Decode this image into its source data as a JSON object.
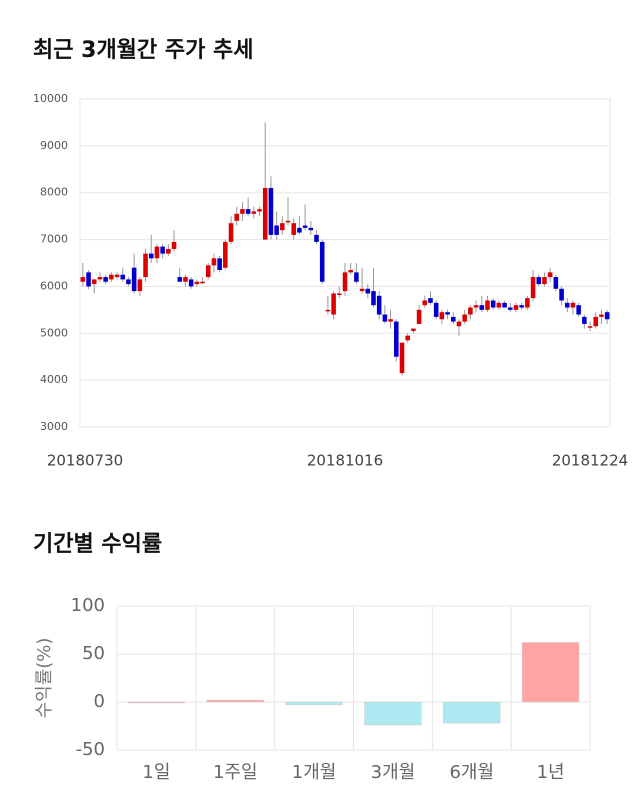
{
  "chart_data": [
    {
      "type": "candlestick",
      "title": "최근 3개월간 주가 추세",
      "categories": [
        "20180730",
        null,
        null,
        null,
        null,
        null,
        null,
        null,
        null,
        null,
        null,
        null,
        null,
        null,
        null,
        null,
        null,
        null,
        null,
        null,
        null,
        null,
        null,
        null,
        null,
        null,
        null,
        null,
        null,
        null,
        null,
        null,
        null,
        null,
        null,
        null,
        null,
        null,
        null,
        null,
        null,
        null,
        null,
        null,
        null,
        null,
        "20181016",
        null,
        null,
        null,
        null,
        null,
        null,
        null,
        null,
        null,
        null,
        null,
        null,
        null,
        null,
        null,
        null,
        null,
        null,
        null,
        null,
        null,
        null,
        null,
        null,
        null,
        null,
        null,
        null,
        null,
        null,
        null,
        null,
        null,
        null,
        null,
        null,
        null,
        null,
        null,
        null,
        null,
        null,
        null,
        null,
        null,
        "20181224"
      ],
      "open": [
        6100,
        6300,
        6050,
        6150,
        6200,
        6150,
        6200,
        6250,
        6150,
        6400,
        5900,
        6200,
        6700,
        6600,
        6850,
        6700,
        6800,
        6200,
        6100,
        6150,
        6050,
        6100,
        6200,
        6450,
        6600,
        6400,
        6950,
        7400,
        7550,
        7650,
        7550,
        7600,
        7000,
        8100,
        7300,
        7200,
        7400,
        7100,
        7250,
        7300,
        7250,
        7100,
        6950,
        5500,
        5400,
        5850,
        5900,
        6300,
        6300,
        5900,
        5950,
        5900,
        5800,
        5400,
        5250,
        5250,
        4150,
        4850,
        5050,
        5200,
        5600,
        5750,
        5650,
        5300,
        5450,
        5350,
        5150,
        5250,
        5400,
        5550,
        5600,
        5500,
        5700,
        5550,
        5650,
        5550,
        5500,
        5600,
        5550,
        5750,
        6200,
        6050,
        6200,
        6200,
        5950,
        5650,
        5550,
        5600,
        5350,
        5150,
        5150,
        5350,
        5450
      ],
      "high": [
        6500,
        6350,
        6150,
        6300,
        6250,
        6300,
        6300,
        6400,
        6200,
        6700,
        6200,
        6800,
        7100,
        6900,
        6900,
        6900,
        7200,
        6400,
        6250,
        6200,
        6150,
        6200,
        6500,
        6700,
        6650,
        7000,
        7500,
        7700,
        7800,
        7900,
        7700,
        7700,
        9500,
        8350,
        7600,
        7500,
        7900,
        7450,
        7500,
        7750,
        7400,
        7200,
        7000,
        5800,
        5900,
        6000,
        6500,
        6500,
        6500,
        6400,
        6050,
        6400,
        5900,
        5600,
        5500,
        5300,
        4800,
        5000,
        5100,
        5600,
        5800,
        5900,
        5700,
        5500,
        5500,
        5450,
        5300,
        5500,
        5600,
        5700,
        5800,
        5800,
        5750,
        5700,
        5700,
        5650,
        5650,
        5650,
        5800,
        6350,
        6250,
        6300,
        6400,
        6250,
        6000,
        5750,
        5700,
        5650,
        5400,
        5250,
        5450,
        5500,
        5500
      ],
      "low": [
        6000,
        5950,
        5850,
        6100,
        6050,
        6100,
        6150,
        6100,
        6000,
        5850,
        5800,
        6100,
        6500,
        6500,
        6600,
        6650,
        6750,
        6100,
        6000,
        5950,
        6000,
        6050,
        6150,
        6300,
        6300,
        6350,
        6900,
        7300,
        7400,
        7500,
        7450,
        7500,
        7000,
        7000,
        7000,
        7100,
        7300,
        7000,
        7100,
        7200,
        7100,
        6900,
        6050,
        5400,
        5300,
        5750,
        5800,
        6250,
        6050,
        5850,
        5750,
        5550,
        5300,
        5200,
        5100,
        4400,
        4100,
        4800,
        5000,
        5200,
        5550,
        5600,
        5300,
        5200,
        5300,
        5200,
        4950,
        5200,
        5300,
        5450,
        5450,
        5450,
        5500,
        5500,
        5550,
        5450,
        5450,
        5500,
        5500,
        5700,
        6000,
        6000,
        6100,
        5900,
        5600,
        5450,
        5400,
        5350,
        5100,
        5050,
        5100,
        5200,
        5200
      ],
      "close": [
        6200,
        6000,
        6150,
        6200,
        6100,
        6250,
        6250,
        6150,
        6050,
        5900,
        6150,
        6700,
        6600,
        6850,
        6700,
        6800,
        6950,
        6100,
        6200,
        6000,
        6100,
        6100,
        6450,
        6600,
        6350,
        6950,
        7350,
        7550,
        7650,
        7550,
        7600,
        7650,
        8100,
        7100,
        7100,
        7350,
        7400,
        7350,
        7150,
        7250,
        7200,
        6950,
        6100,
        5500,
        5850,
        5850,
        6300,
        6350,
        6100,
        5950,
        5850,
        5600,
        5400,
        5250,
        5300,
        4500,
        4800,
        4950,
        5100,
        5500,
        5700,
        5650,
        5350,
        5450,
        5400,
        5250,
        5250,
        5400,
        5550,
        5600,
        5500,
        5700,
        5550,
        5650,
        5550,
        5500,
        5600,
        5550,
        5750,
        6200,
        6050,
        6200,
        6300,
        5950,
        5700,
        5550,
        5650,
        5400,
        5200,
        5150,
        5350,
        5400,
        5300
      ],
      "up_color": "#dd0000",
      "down_color": "#0000cc",
      "ylim": [
        3000,
        10000
      ],
      "yticks": [
        3000,
        4000,
        5000,
        6000,
        7000,
        8000,
        9000,
        10000
      ],
      "grid": true
    },
    {
      "type": "bar",
      "title": "기간별 수익률",
      "y_label": "수익률(%)",
      "categories": [
        "1일",
        "1주일",
        "1개월",
        "3개월",
        "6개월",
        "1년"
      ],
      "values": [
        0,
        2,
        -3,
        -24,
        -22,
        62
      ],
      "colors": [
        "#ffa3a3",
        "#ffa3a3",
        "#aee9f2",
        "#aee9f2",
        "#aee9f2",
        "#ffa3a3"
      ],
      "ylim": [
        -50,
        100
      ],
      "yticks": [
        -50,
        0,
        50,
        100
      ],
      "grid": true
    }
  ]
}
